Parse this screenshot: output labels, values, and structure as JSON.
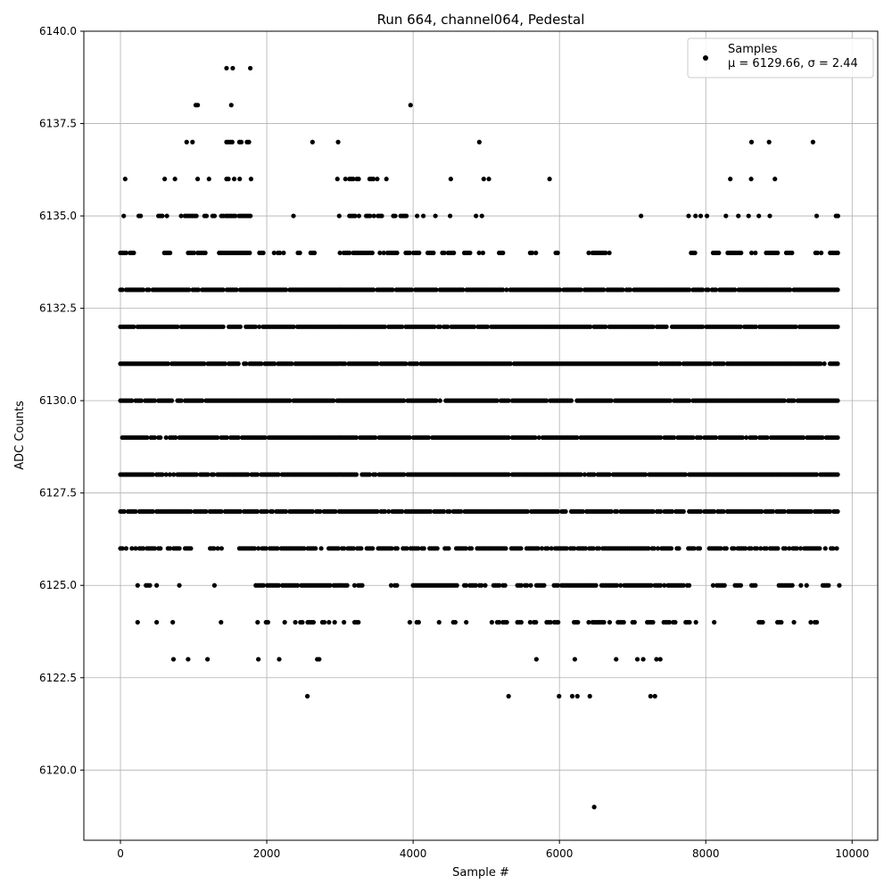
{
  "chart_data": {
    "type": "scatter",
    "title": "Run 664, channel064, Pedestal",
    "xlabel": "Sample #",
    "ylabel": "ADC Counts",
    "xlim": [
      -500,
      10350
    ],
    "ylim": [
      6118.1,
      6140.0
    ],
    "x_ticks": [
      0,
      2000,
      4000,
      6000,
      8000,
      10000
    ],
    "y_ticks": [
      6120.0,
      6122.5,
      6125.0,
      6127.5,
      6130.0,
      6132.5,
      6135.0,
      6137.5,
      6140.0
    ],
    "grid": true,
    "marker_color": "#000000",
    "legend": {
      "placement": "top-right",
      "series_name": "Samples",
      "stats_label": "μ = 6129.66, σ = 2.44"
    },
    "series": [
      {
        "name": "Samples",
        "level_ranges": [
          {
            "y": 6139,
            "ranges": [
              [
                1440,
                1460
              ],
              [
                1530,
                1540
              ],
              [
                1770,
                1780
              ]
            ]
          },
          {
            "y": 6138,
            "ranges": [
              [
                1030,
                1060
              ],
              [
                1510,
                1520
              ],
              [
                3960,
                3970
              ]
            ]
          },
          {
            "y": 6137,
            "ranges": [
              [
                900,
                910
              ],
              [
                980,
                990
              ],
              [
                1450,
                1550
              ],
              [
                1600,
                1780
              ],
              [
                2620,
                2630
              ],
              [
                2970,
                2980
              ],
              [
                4900,
                4910
              ],
              [
                8620,
                8630
              ],
              [
                8860,
                8870
              ],
              [
                9460,
                9470
              ]
            ]
          },
          {
            "y": 6136,
            "ranges": [
              [
                60,
                70
              ],
              [
                600,
                610
              ],
              [
                740,
                750
              ],
              [
                1050,
                1060
              ],
              [
                1200,
                1220
              ],
              [
                1450,
                1510
              ],
              [
                1550,
                1560
              ],
              [
                1620,
                1640
              ],
              [
                1780,
                1790
              ],
              [
                2960,
                2970
              ],
              [
                3070,
                3080
              ],
              [
                3130,
                3190
              ],
              [
                3230,
                3260
              ],
              [
                3380,
                3460
              ],
              [
                3500,
                3520
              ],
              [
                3630,
                3640
              ],
              [
                4510,
                4520
              ],
              [
                4960,
                4970
              ],
              [
                5030,
                5040
              ],
              [
                5860,
                5870
              ],
              [
                8330,
                8340
              ],
              [
                8610,
                8630
              ],
              [
                8940,
                8950
              ]
            ]
          },
          {
            "y": 6135,
            "ranges": [
              [
                40,
                50
              ],
              [
                250,
                320
              ],
              [
                520,
                580
              ],
              [
                630,
                640
              ],
              [
                830,
                1070
              ],
              [
                1150,
                1200
              ],
              [
                1260,
                1290
              ],
              [
                1380,
                1420
              ],
              [
                1440,
                1580
              ],
              [
                1620,
                1780
              ],
              [
                2360,
                2370
              ],
              [
                2980,
                3000
              ],
              [
                3130,
                3300
              ],
              [
                3360,
                3500
              ],
              [
                3520,
                3580
              ],
              [
                3730,
                3760
              ],
              [
                3830,
                3910
              ],
              [
                4050,
                4060
              ],
              [
                4130,
                4150
              ],
              [
                4300,
                4310
              ],
              [
                4480,
                4520
              ],
              [
                4860,
                4890
              ],
              [
                4930,
                4950
              ],
              [
                7110,
                7120
              ],
              [
                7760,
                7770
              ],
              [
                7850,
                7870
              ],
              [
                7920,
                7940
              ],
              [
                7990,
                8040
              ],
              [
                8270,
                8280
              ],
              [
                8440,
                8450
              ],
              [
                8580,
                8590
              ],
              [
                8720,
                8730
              ],
              [
                8870,
                8880
              ],
              [
                9510,
                9520
              ],
              [
                9780,
                9820
              ]
            ]
          },
          {
            "y": 6134,
            "ranges": [
              [
                0,
                200
              ],
              [
                600,
                700
              ],
              [
                900,
                1200
              ],
              [
                1350,
                1800
              ],
              [
                1900,
                2000
              ],
              [
                2100,
                2300
              ],
              [
                2400,
                2500
              ],
              [
                2600,
                2700
              ],
              [
                3000,
                3800
              ],
              [
                3900,
                4100
              ],
              [
                4200,
                4300
              ],
              [
                4400,
                4600
              ],
              [
                4700,
                4800
              ],
              [
                4850,
                5000
              ],
              [
                5150,
                5250
              ],
              [
                5600,
                5700
              ],
              [
                5950,
                6000
              ],
              [
                6400,
                6500
              ],
              [
                6500,
                6700
              ],
              [
                7800,
                7900
              ],
              [
                8100,
                8200
              ],
              [
                8300,
                8500
              ],
              [
                8600,
                8700
              ],
              [
                8800,
                9000
              ],
              [
                9100,
                9200
              ],
              [
                9500,
                9600
              ],
              [
                9700,
                9820
              ]
            ]
          },
          {
            "y": 6133,
            "ranges": [
              [
                0,
                9820
              ]
            ]
          },
          {
            "y": 6132,
            "ranges": [
              [
                0,
                9820
              ]
            ]
          },
          {
            "y": 6131,
            "ranges": [
              [
                0,
                9820
              ]
            ]
          },
          {
            "y": 6130,
            "ranges": [
              [
                0,
                9820
              ]
            ]
          },
          {
            "y": 6129,
            "ranges": [
              [
                0,
                9820
              ]
            ]
          },
          {
            "y": 6128,
            "ranges": [
              [
                0,
                9820
              ]
            ]
          },
          {
            "y": 6127,
            "ranges": [
              [
                0,
                9820
              ]
            ]
          },
          {
            "y": 6126,
            "ranges": [
              [
                0,
                1000
              ],
              [
                1200,
                1400
              ],
              [
                1600,
                9820
              ]
            ]
          },
          {
            "y": 6125,
            "ranges": [
              [
                230,
                240
              ],
              [
                350,
                420
              ],
              [
                490,
                500
              ],
              [
                800,
                810
              ],
              [
                1280,
                1290
              ],
              [
                1850,
                3100
              ],
              [
                3200,
                3350
              ],
              [
                3700,
                3800
              ],
              [
                4000,
                4600
              ],
              [
                4700,
                5000
              ],
              [
                5100,
                5300
              ],
              [
                5400,
                5800
              ],
              [
                5900,
                7800
              ],
              [
                8100,
                8300
              ],
              [
                8400,
                8500
              ],
              [
                8600,
                8700
              ],
              [
                9000,
                9200
              ],
              [
                9300,
                9400
              ],
              [
                9600,
                9700
              ],
              [
                9820,
                9830
              ]
            ]
          },
          {
            "y": 6124,
            "ranges": [
              [
                230,
                240
              ],
              [
                490,
                500
              ],
              [
                710,
                720
              ],
              [
                1370,
                1380
              ],
              [
                1870,
                1880
              ],
              [
                1990,
                2040
              ],
              [
                2240,
                2250
              ],
              [
                2380,
                2400
              ],
              [
                2460,
                2500
              ],
              [
                2560,
                2700
              ],
              [
                2760,
                2800
              ],
              [
                2850,
                2950
              ],
              [
                3050,
                3060
              ],
              [
                3200,
                3300
              ],
              [
                3950,
                3960
              ],
              [
                4050,
                4080
              ],
              [
                4350,
                4360
              ],
              [
                4550,
                4600
              ],
              [
                4700,
                4750
              ],
              [
                5050,
                5100
              ],
              [
                5150,
                5300
              ],
              [
                5400,
                5500
              ],
              [
                5600,
                5700
              ],
              [
                5800,
                6000
              ],
              [
                6200,
                6300
              ],
              [
                6400,
                6700
              ],
              [
                6800,
                6900
              ],
              [
                7000,
                7100
              ],
              [
                7200,
                7300
              ],
              [
                7400,
                7600
              ],
              [
                7700,
                7800
              ],
              [
                7860,
                7870
              ],
              [
                8110,
                8120
              ],
              [
                8700,
                8800
              ],
              [
                8980,
                9040
              ],
              [
                9200,
                9210
              ],
              [
                9430,
                9440
              ],
              [
                9490,
                9540
              ]
            ]
          },
          {
            "y": 6123,
            "ranges": [
              [
                720,
                730
              ],
              [
                920,
                930
              ],
              [
                1180,
                1200
              ],
              [
                1880,
                1890
              ],
              [
                2160,
                2180
              ],
              [
                2690,
                2720
              ],
              [
                5680,
                5690
              ],
              [
                6210,
                6260
              ],
              [
                6770,
                6780
              ],
              [
                7060,
                7070
              ],
              [
                7140,
                7150
              ],
              [
                7300,
                7400
              ]
            ]
          },
          {
            "y": 6122,
            "ranges": [
              [
                2550,
                2560
              ],
              [
                5300,
                5310
              ],
              [
                5990,
                6000
              ],
              [
                6170,
                6180
              ],
              [
                6240,
                6250
              ],
              [
                6410,
                6420
              ],
              [
                7240,
                7250
              ],
              [
                7300,
                7310
              ]
            ]
          },
          {
            "y": 6119,
            "ranges": [
              [
                6470,
                6480
              ]
            ]
          }
        ]
      }
    ]
  }
}
